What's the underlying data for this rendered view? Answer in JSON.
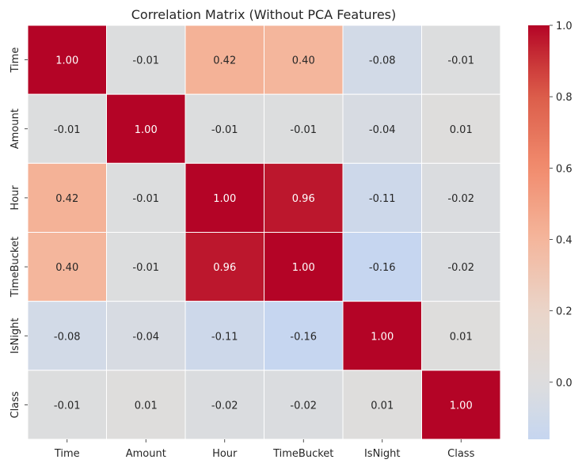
{
  "chart_data": {
    "type": "heatmap",
    "title": "Correlation Matrix (Without PCA Features)",
    "xlabel": "",
    "ylabel": "",
    "x_categories": [
      "Time",
      "Amount",
      "Hour",
      "TimeBucket",
      "IsNight",
      "Class"
    ],
    "y_categories": [
      "Time",
      "Amount",
      "Hour",
      "TimeBucket",
      "IsNight",
      "Class"
    ],
    "values": [
      [
        1.0,
        -0.01,
        0.42,
        0.4,
        -0.08,
        -0.01
      ],
      [
        -0.01,
        1.0,
        -0.01,
        -0.01,
        -0.04,
        0.01
      ],
      [
        0.42,
        -0.01,
        1.0,
        0.96,
        -0.11,
        -0.02
      ],
      [
        0.4,
        -0.01,
        0.96,
        1.0,
        -0.16,
        -0.02
      ],
      [
        -0.08,
        -0.04,
        -0.11,
        -0.16,
        1.0,
        0.01
      ],
      [
        -0.01,
        0.01,
        -0.02,
        -0.02,
        0.01,
        1.0
      ]
    ],
    "annotation_format": "2 decimals",
    "colormap": "coolwarm",
    "center": 0,
    "vmin": -0.16,
    "vmax": 1.0,
    "colorbar": {
      "ticks": [
        0.0,
        0.2,
        0.4,
        0.6,
        0.8,
        1.0
      ],
      "tick_labels": [
        "0.0",
        "0.2",
        "0.4",
        "0.6",
        "0.8",
        "1.0"
      ]
    },
    "grid_line_color": "#ffffff"
  }
}
